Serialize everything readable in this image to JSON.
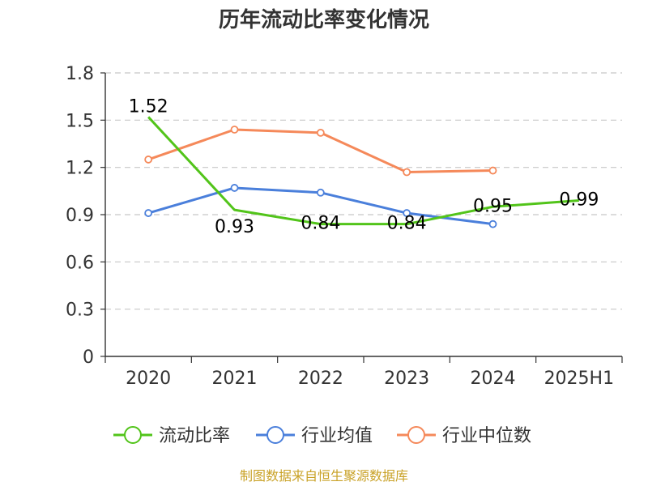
{
  "chart_data": {
    "type": "line",
    "title": "历年流动比率变化情况",
    "categories": [
      "2020",
      "2021",
      "2022",
      "2023",
      "2024",
      "2025H1"
    ],
    "y_ticks": [
      "0",
      "0.3",
      "0.6",
      "0.9",
      "1.2",
      "1.5",
      "1.8"
    ],
    "ylim": [
      0,
      1.8
    ],
    "grid": true,
    "legend_position": "bottom",
    "series": [
      {
        "name": "流动比率",
        "color": "#52c41a",
        "values": [
          1.52,
          0.93,
          0.84,
          0.84,
          0.95,
          0.99
        ],
        "labels": [
          "1.52",
          "0.93",
          "0.84",
          "0.84",
          "0.95",
          "0.99"
        ],
        "markers": false
      },
      {
        "name": "行业均值",
        "color": "#4a7fdb",
        "values": [
          0.91,
          1.07,
          1.04,
          0.91,
          0.84,
          null
        ],
        "markers": true
      },
      {
        "name": "行业中位数",
        "color": "#f5895a",
        "values": [
          1.25,
          1.44,
          1.42,
          1.17,
          1.18,
          null
        ],
        "markers": true
      }
    ]
  },
  "source": "制图数据来自恒生聚源数据库"
}
